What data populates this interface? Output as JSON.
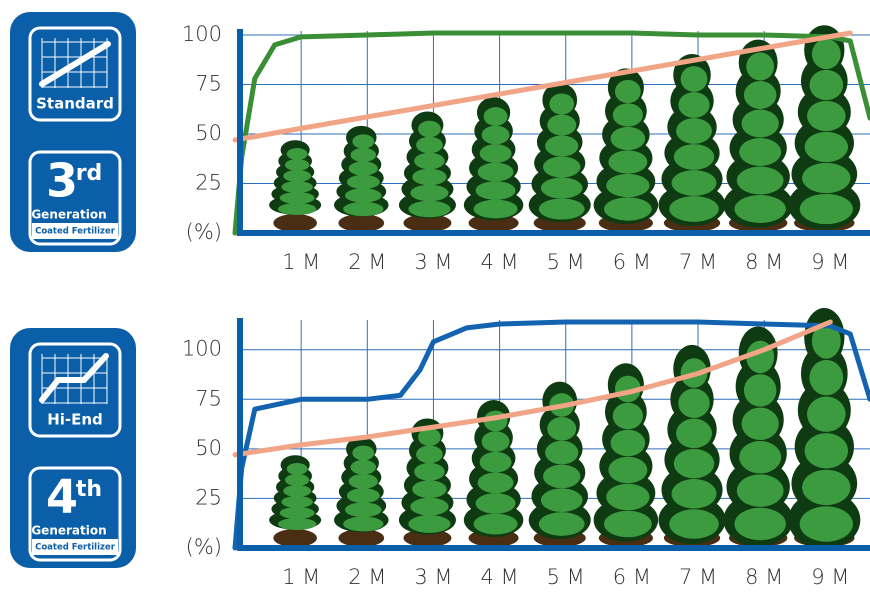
{
  "badges": [
    {
      "label": "Standard",
      "generation_number": "3",
      "generation_suffix": "rd",
      "generation_text": "Generation",
      "product": "Coated Fertilizer"
    },
    {
      "label": "Hi-End",
      "generation_number": "4",
      "generation_suffix": "th",
      "generation_text": "Generation",
      "product": "Coated Fertilizer"
    }
  ],
  "chart_data": [
    {
      "type": "line",
      "x": [
        0,
        0.1,
        0.3,
        0.6,
        1,
        2,
        3,
        4,
        5,
        6,
        7,
        8,
        9,
        9.3,
        9.6
      ],
      "xlim": [
        0,
        9.6
      ],
      "xticks": [
        {
          "value": 1,
          "label": "1 M"
        },
        {
          "value": 2,
          "label": "2 M"
        },
        {
          "value": 3,
          "label": "3 M"
        },
        {
          "value": 4,
          "label": "4 M"
        },
        {
          "value": 5,
          "label": "5 M"
        },
        {
          "value": 6,
          "label": "6 M"
        },
        {
          "value": 7,
          "label": "7 M"
        },
        {
          "value": 8,
          "label": "8 M"
        },
        {
          "value": 9,
          "label": "9 M"
        }
      ],
      "ylim": [
        0,
        102
      ],
      "yticks": [
        {
          "value": 0,
          "label": "(%)"
        },
        25,
        50,
        75,
        100
      ],
      "grid": true,
      "series": [
        {
          "color": "#3a8f36",
          "values": [
            0,
            38,
            78,
            95,
            99,
            100,
            101,
            101,
            101,
            101,
            100,
            100,
            99,
            97,
            58
          ]
        },
        {
          "color": "#f2a486",
          "values": [
            47,
            47.6,
            48.7,
            50.5,
            52.8,
            58.6,
            64.4,
            70.2,
            76,
            81.8,
            87.6,
            93.4,
            99.2,
            101,
            null
          ]
        }
      ]
    },
    {
      "type": "line",
      "x": [
        0,
        0.1,
        0.3,
        1,
        2,
        2.5,
        2.8,
        3,
        3.5,
        4,
        5,
        6,
        7,
        8,
        9,
        9.3,
        9.6
      ],
      "xlim": [
        0,
        9.6
      ],
      "xticks": [
        {
          "value": 1,
          "label": "1 M"
        },
        {
          "value": 2,
          "label": "2 M"
        },
        {
          "value": 3,
          "label": "3 M"
        },
        {
          "value": 4,
          "label": "4 M"
        },
        {
          "value": 5,
          "label": "5 M"
        },
        {
          "value": 6,
          "label": "6 M"
        },
        {
          "value": 7,
          "label": "7 M"
        },
        {
          "value": 8,
          "label": "8 M"
        },
        {
          "value": 9,
          "label": "9 M"
        }
      ],
      "ylim": [
        0,
        115
      ],
      "yticks": [
        {
          "value": 0,
          "label": "(%)"
        },
        25,
        50,
        75,
        100
      ],
      "grid": true,
      "series": [
        {
          "color": "#1463b0",
          "values": [
            0,
            40,
            70,
            75,
            75,
            77,
            90,
            104,
            111,
            113,
            114,
            114,
            114,
            113,
            112,
            108,
            75
          ]
        },
        {
          "color": "#f2a486",
          "values": [
            47,
            47.5,
            48.5,
            52,
            56,
            58.5,
            60,
            61,
            63.5,
            66,
            72,
            79,
            88,
            100,
            114,
            null,
            null
          ]
        }
      ]
    }
  ]
}
